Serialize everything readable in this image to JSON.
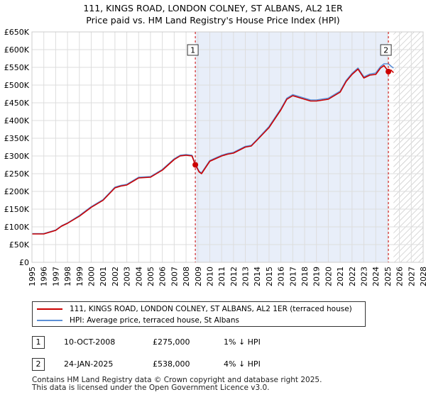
{
  "chart_data": {
    "type": "line",
    "title": "111, KINGS ROAD, LONDON COLNEY, ST ALBANS, AL2 1ER",
    "subtitle": "Price paid vs. HM Land Registry's House Price Index (HPI)",
    "xlabel": "",
    "ylabel": "",
    "xlim": [
      1995,
      2028
    ],
    "ylim": [
      0,
      650000
    ],
    "x_ticks": [
      1995,
      1996,
      1997,
      1998,
      1999,
      2000,
      2001,
      2002,
      2003,
      2004,
      2005,
      2006,
      2007,
      2008,
      2009,
      2010,
      2011,
      2012,
      2013,
      2014,
      2015,
      2016,
      2017,
      2018,
      2019,
      2020,
      2021,
      2022,
      2023,
      2024,
      2025,
      2026,
      2027,
      2028
    ],
    "y_ticks": [
      0,
      50000,
      100000,
      150000,
      200000,
      250000,
      300000,
      350000,
      400000,
      450000,
      500000,
      550000,
      600000,
      650000
    ],
    "y_tick_labels": [
      "£0",
      "£50K",
      "£100K",
      "£150K",
      "£200K",
      "£250K",
      "£300K",
      "£350K",
      "£400K",
      "£450K",
      "£500K",
      "£550K",
      "£600K",
      "£650K"
    ],
    "grid": true,
    "shaded_period": [
      2008.78,
      2025.07
    ],
    "forecast_hatch_from": 2025.5,
    "colors": {
      "property": "#cc0000",
      "hpi": "#5b8fd6",
      "shade": "#e8eef9",
      "marker": "#cc0000"
    },
    "series": [
      {
        "name": "111, KINGS ROAD, LONDON COLNEY, ST ALBANS, AL2 1ER (terraced house)",
        "color": "#cc0000",
        "x": [
          1995.0,
          1996.0,
          1997.0,
          1997.5,
          1998.0,
          1999.0,
          2000.0,
          2001.0,
          2002.0,
          2002.5,
          2003.0,
          2004.0,
          2005.0,
          2006.0,
          2007.0,
          2007.5,
          2008.0,
          2008.5,
          2008.78,
          2009.1,
          2009.3,
          2010.0,
          2011.0,
          2011.5,
          2012.0,
          2013.0,
          2013.5,
          2014.0,
          2015.0,
          2016.0,
          2016.5,
          2017.0,
          2017.5,
          2018.0,
          2018.5,
          2019.0,
          2020.0,
          2021.0,
          2021.5,
          2022.0,
          2022.5,
          2023.0,
          2023.5,
          2024.0,
          2024.4,
          2024.7,
          2025.07,
          2025.3,
          2025.5
        ],
        "values": [
          80000,
          80000,
          90000,
          102000,
          110000,
          130000,
          155000,
          175000,
          210000,
          215000,
          218000,
          238000,
          240000,
          260000,
          290000,
          300000,
          302000,
          300000,
          275000,
          255000,
          250000,
          285000,
          300000,
          305000,
          308000,
          325000,
          328000,
          345000,
          380000,
          430000,
          460000,
          470000,
          465000,
          460000,
          455000,
          455000,
          460000,
          480000,
          510000,
          530000,
          545000,
          520000,
          528000,
          530000,
          548000,
          555000,
          538000,
          542000,
          535000
        ]
      },
      {
        "name": "HPI: Average price, terraced house, St Albans",
        "color": "#5b8fd6",
        "x": [
          1995.0,
          1996.0,
          1997.0,
          1997.5,
          1998.0,
          1999.0,
          2000.0,
          2001.0,
          2002.0,
          2002.5,
          2003.0,
          2004.0,
          2005.0,
          2006.0,
          2007.0,
          2007.5,
          2008.0,
          2008.5,
          2008.78,
          2009.1,
          2009.3,
          2010.0,
          2011.0,
          2011.5,
          2012.0,
          2013.0,
          2013.5,
          2014.0,
          2015.0,
          2016.0,
          2016.5,
          2017.0,
          2017.5,
          2018.0,
          2018.5,
          2019.0,
          2020.0,
          2021.0,
          2021.5,
          2022.0,
          2022.5,
          2023.0,
          2023.5,
          2024.0,
          2024.4,
          2024.7,
          2025.07,
          2025.3,
          2025.5
        ],
        "values": [
          81000,
          81000,
          91000,
          103000,
          111000,
          132000,
          157000,
          177000,
          212000,
          217000,
          220000,
          240000,
          242000,
          262000,
          292000,
          302000,
          304000,
          302000,
          277000,
          257000,
          252000,
          287000,
          302000,
          307000,
          310000,
          327000,
          330000,
          347000,
          383000,
          433000,
          463000,
          473000,
          468000,
          463000,
          458000,
          458000,
          463000,
          483000,
          513000,
          533000,
          548000,
          523000,
          531000,
          534000,
          552000,
          560000,
          560000,
          553000,
          548000
        ]
      }
    ],
    "annotations": [
      {
        "label": "1",
        "x": 2008.78,
        "value": 275000,
        "date": "10-OCT-2008",
        "price": "£275,000",
        "hpi_diff": "1% ↓ HPI"
      },
      {
        "label": "2",
        "x": 2025.07,
        "value": 538000,
        "date": "24-JAN-2025",
        "price": "£538,000",
        "hpi_diff": "4% ↓ HPI"
      }
    ],
    "legend": {
      "position": "bottom",
      "entries": [
        "111, KINGS ROAD, LONDON COLNEY, ST ALBANS, AL2 1ER (terraced house)",
        "HPI: Average price, terraced house, St Albans"
      ]
    }
  },
  "footer": {
    "line1": "Contains HM Land Registry data © Crown copyright and database right 2025.",
    "line2": "This data is licensed under the Open Government Licence v3.0."
  }
}
